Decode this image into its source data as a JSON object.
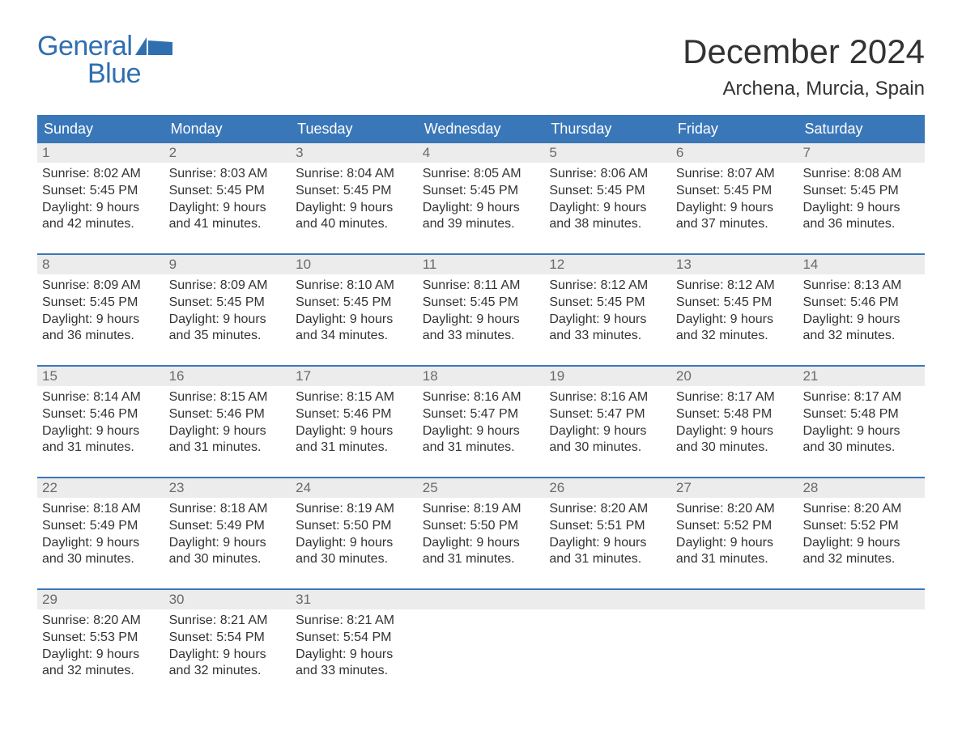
{
  "brand": {
    "word1": "General",
    "word2": "Blue",
    "flag_color": "#2f6faf"
  },
  "title": {
    "month": "December 2024",
    "location": "Archena, Murcia, Spain"
  },
  "colors": {
    "header_bg": "#3a77b8",
    "header_text": "#ffffff",
    "daynum_bg": "#ececec",
    "daynum_text": "#6a6a6a",
    "body_text": "#333333",
    "rule": "#3a77b8"
  },
  "typography": {
    "title_fontsize": 42,
    "location_fontsize": 24,
    "header_cell_fontsize": 18,
    "daynum_fontsize": 17,
    "daytext_fontsize": 16,
    "logo_fontsize": 34
  },
  "daysOfWeek": [
    "Sunday",
    "Monday",
    "Tuesday",
    "Wednesday",
    "Thursday",
    "Friday",
    "Saturday"
  ],
  "weeks": [
    [
      {
        "n": "1",
        "sunrise": "8:02 AM",
        "sunset": "5:45 PM",
        "daylight": "9 hours and 42 minutes."
      },
      {
        "n": "2",
        "sunrise": "8:03 AM",
        "sunset": "5:45 PM",
        "daylight": "9 hours and 41 minutes."
      },
      {
        "n": "3",
        "sunrise": "8:04 AM",
        "sunset": "5:45 PM",
        "daylight": "9 hours and 40 minutes."
      },
      {
        "n": "4",
        "sunrise": "8:05 AM",
        "sunset": "5:45 PM",
        "daylight": "9 hours and 39 minutes."
      },
      {
        "n": "5",
        "sunrise": "8:06 AM",
        "sunset": "5:45 PM",
        "daylight": "9 hours and 38 minutes."
      },
      {
        "n": "6",
        "sunrise": "8:07 AM",
        "sunset": "5:45 PM",
        "daylight": "9 hours and 37 minutes."
      },
      {
        "n": "7",
        "sunrise": "8:08 AM",
        "sunset": "5:45 PM",
        "daylight": "9 hours and 36 minutes."
      }
    ],
    [
      {
        "n": "8",
        "sunrise": "8:09 AM",
        "sunset": "5:45 PM",
        "daylight": "9 hours and 36 minutes."
      },
      {
        "n": "9",
        "sunrise": "8:09 AM",
        "sunset": "5:45 PM",
        "daylight": "9 hours and 35 minutes."
      },
      {
        "n": "10",
        "sunrise": "8:10 AM",
        "sunset": "5:45 PM",
        "daylight": "9 hours and 34 minutes."
      },
      {
        "n": "11",
        "sunrise": "8:11 AM",
        "sunset": "5:45 PM",
        "daylight": "9 hours and 33 minutes."
      },
      {
        "n": "12",
        "sunrise": "8:12 AM",
        "sunset": "5:45 PM",
        "daylight": "9 hours and 33 minutes."
      },
      {
        "n": "13",
        "sunrise": "8:12 AM",
        "sunset": "5:45 PM",
        "daylight": "9 hours and 32 minutes."
      },
      {
        "n": "14",
        "sunrise": "8:13 AM",
        "sunset": "5:46 PM",
        "daylight": "9 hours and 32 minutes."
      }
    ],
    [
      {
        "n": "15",
        "sunrise": "8:14 AM",
        "sunset": "5:46 PM",
        "daylight": "9 hours and 31 minutes."
      },
      {
        "n": "16",
        "sunrise": "8:15 AM",
        "sunset": "5:46 PM",
        "daylight": "9 hours and 31 minutes."
      },
      {
        "n": "17",
        "sunrise": "8:15 AM",
        "sunset": "5:46 PM",
        "daylight": "9 hours and 31 minutes."
      },
      {
        "n": "18",
        "sunrise": "8:16 AM",
        "sunset": "5:47 PM",
        "daylight": "9 hours and 31 minutes."
      },
      {
        "n": "19",
        "sunrise": "8:16 AM",
        "sunset": "5:47 PM",
        "daylight": "9 hours and 30 minutes."
      },
      {
        "n": "20",
        "sunrise": "8:17 AM",
        "sunset": "5:48 PM",
        "daylight": "9 hours and 30 minutes."
      },
      {
        "n": "21",
        "sunrise": "8:17 AM",
        "sunset": "5:48 PM",
        "daylight": "9 hours and 30 minutes."
      }
    ],
    [
      {
        "n": "22",
        "sunrise": "8:18 AM",
        "sunset": "5:49 PM",
        "daylight": "9 hours and 30 minutes."
      },
      {
        "n": "23",
        "sunrise": "8:18 AM",
        "sunset": "5:49 PM",
        "daylight": "9 hours and 30 minutes."
      },
      {
        "n": "24",
        "sunrise": "8:19 AM",
        "sunset": "5:50 PM",
        "daylight": "9 hours and 30 minutes."
      },
      {
        "n": "25",
        "sunrise": "8:19 AM",
        "sunset": "5:50 PM",
        "daylight": "9 hours and 31 minutes."
      },
      {
        "n": "26",
        "sunrise": "8:20 AM",
        "sunset": "5:51 PM",
        "daylight": "9 hours and 31 minutes."
      },
      {
        "n": "27",
        "sunrise": "8:20 AM",
        "sunset": "5:52 PM",
        "daylight": "9 hours and 31 minutes."
      },
      {
        "n": "28",
        "sunrise": "8:20 AM",
        "sunset": "5:52 PM",
        "daylight": "9 hours and 32 minutes."
      }
    ],
    [
      {
        "n": "29",
        "sunrise": "8:20 AM",
        "sunset": "5:53 PM",
        "daylight": "9 hours and 32 minutes."
      },
      {
        "n": "30",
        "sunrise": "8:21 AM",
        "sunset": "5:54 PM",
        "daylight": "9 hours and 32 minutes."
      },
      {
        "n": "31",
        "sunrise": "8:21 AM",
        "sunset": "5:54 PM",
        "daylight": "9 hours and 33 minutes."
      },
      null,
      null,
      null,
      null
    ]
  ],
  "labels": {
    "sunrise": "Sunrise:",
    "sunset": "Sunset:",
    "daylight": "Daylight:"
  }
}
